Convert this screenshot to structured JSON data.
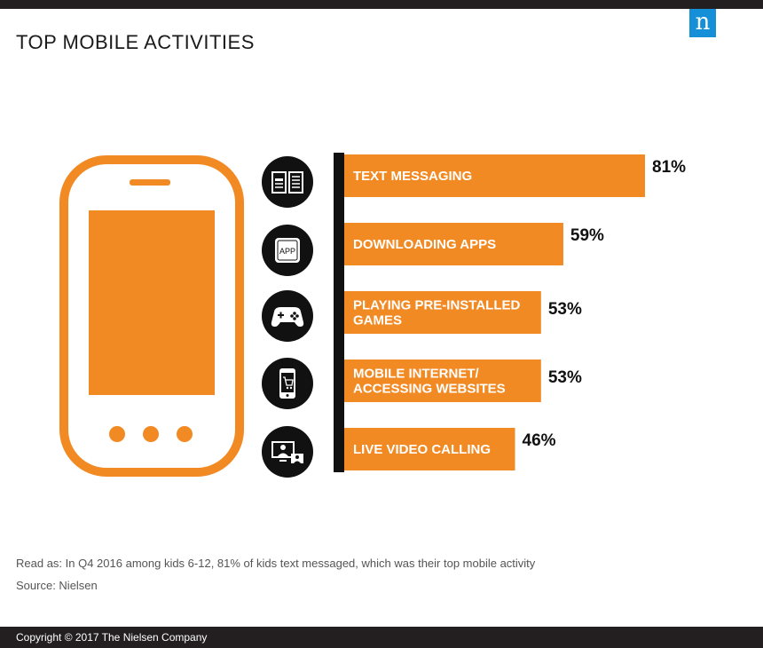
{
  "header": {
    "title": "TOP MOBILE ACTIVITIES",
    "logo_letter": "n",
    "logo_color": "#1590d8"
  },
  "colors": {
    "accent": "#f28a24",
    "dark": "#111111"
  },
  "icons": [
    "book-icon",
    "app-icon",
    "gamepad-icon",
    "smartphone-cart-icon",
    "video-call-icon"
  ],
  "chart_data": {
    "type": "bar",
    "orientation": "horizontal",
    "categories": [
      [
        "TEXT MESSAGING"
      ],
      [
        "DOWNLOADING APPS"
      ],
      [
        "PLAYING PRE-INSTALLED",
        "GAMES"
      ],
      [
        "MOBILE INTERNET/",
        "ACCESSING WEBSITES"
      ],
      [
        "LIVE VIDEO CALLING"
      ]
    ],
    "values": [
      81,
      59,
      53,
      53,
      46
    ],
    "value_labels": [
      "81%",
      "59%",
      "53%",
      "53%",
      "46%"
    ],
    "unit": "%",
    "xlim": [
      0,
      100
    ],
    "bar_color": "#f28a24",
    "grid": false
  },
  "notes": {
    "read_as": "Read as: In Q4 2016 among kids 6-12, 81% of kids text messaged, which was their top mobile activity",
    "source": "Source: Nielsen"
  },
  "footer": {
    "copyright": "Copyright © 2017 The Nielsen Company"
  }
}
